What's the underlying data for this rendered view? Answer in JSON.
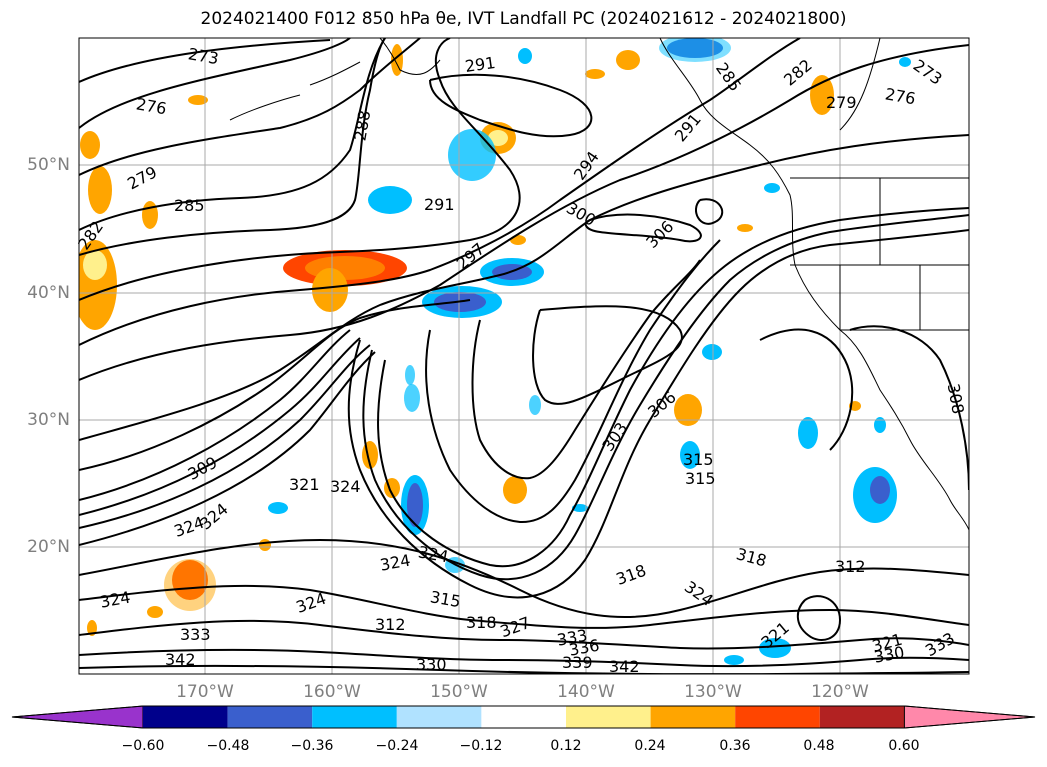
{
  "title": "2024021400 F012 850 hPa θe, IVT Landfall PC (2024021612 - 2024021800)",
  "lat_labels": [
    "50°N",
    "40°N",
    "30°N",
    "20°N"
  ],
  "lon_labels": [
    "170°W",
    "160°W",
    "150°W",
    "140°W",
    "130°W",
    "120°W"
  ],
  "contour_labels": [
    "273",
    "276",
    "279",
    "282",
    "285",
    "288",
    "291",
    "294",
    "297",
    "300",
    "303",
    "306",
    "308",
    "309",
    "312",
    "315",
    "318",
    "321",
    "324",
    "327",
    "330",
    "333",
    "336",
    "339",
    "342"
  ],
  "colorbar": {
    "ticks": [
      "−0.60",
      "−0.48",
      "−0.36",
      "−0.24",
      "−0.12",
      "0.12",
      "0.24",
      "0.36",
      "0.48",
      "0.60"
    ],
    "colors": [
      "#9933cc",
      "#00008b",
      "#3a5fcd",
      "#00bfff",
      "#b0e2ff",
      "#ffffff",
      "#fff08c",
      "#ffa500",
      "#ff4500",
      "#b22222",
      "#ff88aa"
    ]
  },
  "colors": {
    "ocean": "#ffffff",
    "contour": "#000000",
    "grid": "#999999"
  }
}
